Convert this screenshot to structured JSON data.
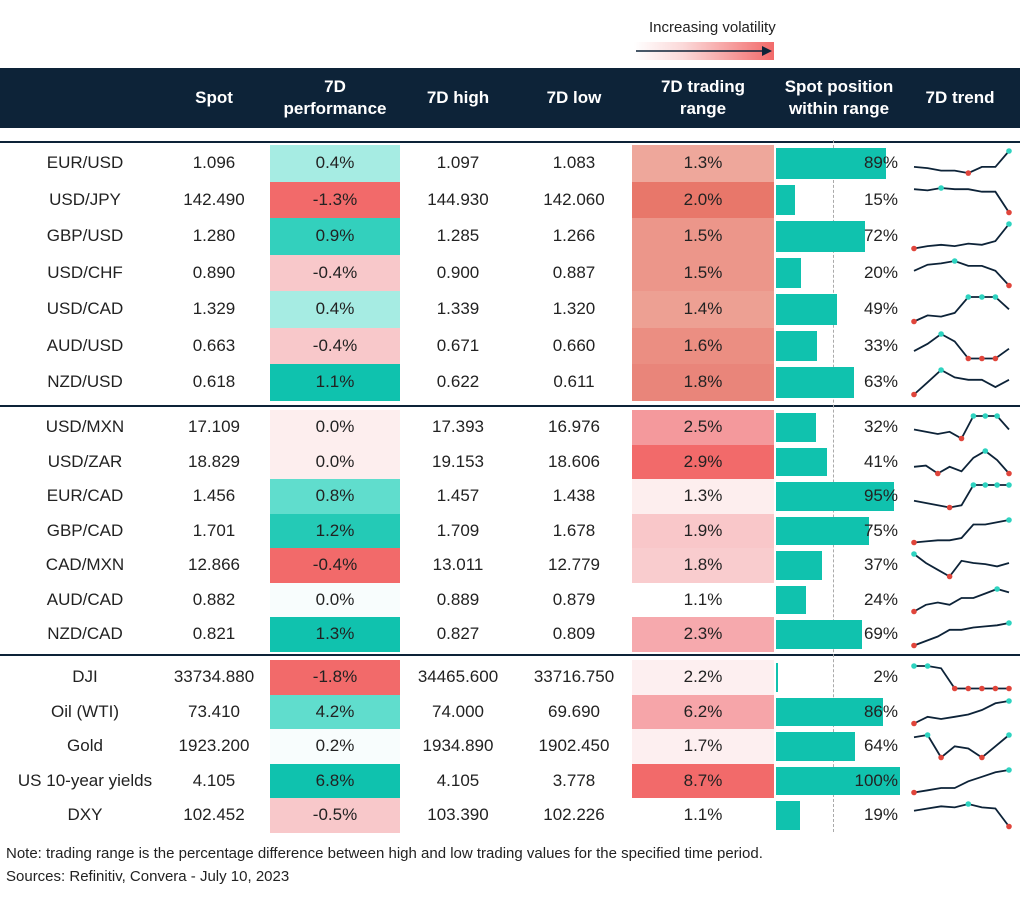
{
  "legend": {
    "label": "Increasing volatility"
  },
  "header": {
    "spot": "Spot",
    "perf_line1": "7D",
    "perf_line2": "performance",
    "high": "7D high",
    "low": "7D low",
    "range_line1": "7D trading",
    "range_line2": "range",
    "pos_line1": "Spot position",
    "pos_line2": "within range",
    "trend": "7D trend"
  },
  "groups": [
    {
      "rows": [
        {
          "name": "EUR/USD",
          "spot": "1.096",
          "perf": "0.4%",
          "high": "1.097",
          "low": "1.083",
          "range": "1.3%",
          "pos_label": "89%",
          "perf_color": "#a6ece3",
          "range_color": "#eea79b",
          "pos": 0.89,
          "trend": [
            0.35,
            0.3,
            0.2,
            0.2,
            0.1,
            0.35,
            0.35,
            1.0
          ]
        },
        {
          "name": "USD/JPY",
          "spot": "142.490",
          "perf": "-1.3%",
          "high": "144.930",
          "low": "142.060",
          "range": "2.0%",
          "pos_label": "15%",
          "perf_color": "#f26a6a",
          "range_color": "#e8776a",
          "pos": 0.15,
          "trend": [
            0.95,
            0.9,
            1.0,
            0.95,
            0.95,
            0.85,
            0.85,
            0.0
          ]
        },
        {
          "name": "GBP/USD",
          "spot": "1.280",
          "perf": "0.9%",
          "high": "1.285",
          "low": "1.266",
          "range": "1.5%",
          "pos_label": "72%",
          "perf_color": "#33d0bd",
          "range_color": "#ec968a",
          "pos": 0.72,
          "trend": [
            0.0,
            0.1,
            0.15,
            0.1,
            0.2,
            0.15,
            0.3,
            1.0
          ]
        },
        {
          "name": "USD/CHF",
          "spot": "0.890",
          "perf": "-0.4%",
          "high": "0.900",
          "low": "0.887",
          "range": "1.5%",
          "pos_label": "20%",
          "perf_color": "#f8c8ca",
          "range_color": "#ec968a",
          "pos": 0.2,
          "trend": [
            0.6,
            0.85,
            0.9,
            1.0,
            0.8,
            0.8,
            0.6,
            0.0
          ]
        },
        {
          "name": "USD/CAD",
          "spot": "1.329",
          "perf": "0.4%",
          "high": "1.339",
          "low": "1.320",
          "range": "1.4%",
          "pos_label": "49%",
          "perf_color": "#a6ece3",
          "range_color": "#eda093",
          "pos": 0.49,
          "trend": [
            0.0,
            0.25,
            0.2,
            0.35,
            1.0,
            1.0,
            1.0,
            0.5
          ]
        },
        {
          "name": "AUD/USD",
          "spot": "0.663",
          "perf": "-0.4%",
          "high": "0.671",
          "low": "0.660",
          "range": "1.6%",
          "pos_label": "33%",
          "perf_color": "#f8c8ca",
          "range_color": "#eb8e82",
          "pos": 0.33,
          "trend": [
            0.3,
            0.6,
            1.0,
            0.7,
            0.0,
            0.0,
            0.0,
            0.4
          ]
        },
        {
          "name": "NZD/USD",
          "spot": "0.618",
          "perf": "1.1%",
          "high": "0.622",
          "low": "0.611",
          "range": "1.8%",
          "pos_label": "63%",
          "perf_color": "#0fc2ae",
          "range_color": "#e9857a",
          "pos": 0.63,
          "trend": [
            0.0,
            0.5,
            1.0,
            0.7,
            0.6,
            0.6,
            0.3,
            0.6
          ]
        }
      ]
    },
    {
      "rows": [
        {
          "name": "USD/MXN",
          "spot": "17.109",
          "perf": "0.0%",
          "high": "17.393",
          "low": "16.976",
          "range": "2.5%",
          "pos_label": "32%",
          "perf_color": "#fdeeee",
          "range_color": "#f4999c",
          "pos": 0.32,
          "trend": [
            0.4,
            0.3,
            0.2,
            0.3,
            0.0,
            1.0,
            1.0,
            1.0,
            0.4
          ]
        },
        {
          "name": "USD/ZAR",
          "spot": "18.829",
          "perf": "0.0%",
          "high": "19.153",
          "low": "18.606",
          "range": "2.9%",
          "pos_label": "41%",
          "perf_color": "#fdeeee",
          "range_color": "#f26a6a",
          "pos": 0.41,
          "trend": [
            0.3,
            0.35,
            0.0,
            0.3,
            0.1,
            0.7,
            1.0,
            0.6,
            0.0
          ]
        },
        {
          "name": "EUR/CAD",
          "spot": "1.456",
          "perf": "0.8%",
          "high": "1.457",
          "low": "1.438",
          "range": "1.3%",
          "pos_label": "95%",
          "perf_color": "#60ddcd",
          "range_color": "#fdeeee",
          "pos": 0.95,
          "trend": [
            0.3,
            0.2,
            0.1,
            0.0,
            0.1,
            1.0,
            1.0,
            1.0,
            1.0
          ]
        },
        {
          "name": "GBP/CAD",
          "spot": "1.701",
          "perf": "1.2%",
          "high": "1.709",
          "low": "1.678",
          "range": "1.9%",
          "pos_label": "75%",
          "perf_color": "#24cab6",
          "range_color": "#f9c7c9",
          "pos": 0.75,
          "trend": [
            0.0,
            0.05,
            0.1,
            0.1,
            0.2,
            0.8,
            0.8,
            0.9,
            1.0
          ]
        },
        {
          "name": "CAD/MXN",
          "spot": "12.866",
          "perf": "-0.4%",
          "high": "13.011",
          "low": "12.779",
          "range": "1.8%",
          "pos_label": "37%",
          "perf_color": "#f26a6a",
          "range_color": "#f9ccce",
          "pos": 0.37,
          "trend": [
            1.0,
            0.6,
            0.3,
            0.0,
            0.7,
            0.6,
            0.55,
            0.45,
            0.6
          ]
        },
        {
          "name": "AUD/CAD",
          "spot": "0.882",
          "perf": "0.0%",
          "high": "0.889",
          "low": "0.879",
          "range": "1.1%",
          "pos_label": "24%",
          "perf_color": "#f8fdfd",
          "range_color": "#ffffff",
          "pos": 0.24,
          "trend": [
            0.0,
            0.3,
            0.4,
            0.3,
            0.6,
            0.6,
            0.8,
            1.0,
            0.85
          ]
        },
        {
          "name": "NZD/CAD",
          "spot": "0.821",
          "perf": "1.3%",
          "high": "0.827",
          "low": "0.809",
          "range": "2.3%",
          "pos_label": "69%",
          "perf_color": "#10c2ae",
          "range_color": "#f6a9ad",
          "pos": 0.69,
          "trend": [
            0.0,
            0.2,
            0.4,
            0.7,
            0.7,
            0.8,
            0.85,
            0.9,
            1.0
          ]
        }
      ]
    },
    {
      "rows": [
        {
          "name": "DJI",
          "spot": "33734.880",
          "perf": "-1.8%",
          "high": "34465.600",
          "low": "33716.750",
          "range": "2.2%",
          "pos_label": "2%",
          "perf_color": "#f26a6a",
          "range_color": "#fdeff0",
          "pos": 0.02,
          "trend": [
            1.0,
            1.0,
            0.9,
            0.0,
            0.0,
            0.0,
            0.0,
            0.0
          ]
        },
        {
          "name": "Oil (WTI)",
          "spot": "73.410",
          "perf": "4.2%",
          "high": "74.000",
          "low": "69.690",
          "range": "6.2%",
          "pos_label": "86%",
          "perf_color": "#60ddcd",
          "range_color": "#f6a5a9",
          "pos": 0.86,
          "trend": [
            0.0,
            0.3,
            0.2,
            0.3,
            0.4,
            0.6,
            0.9,
            1.0
          ]
        },
        {
          "name": "Gold",
          "spot": "1923.200",
          "perf": "0.2%",
          "high": "1934.890",
          "low": "1902.450",
          "range": "1.7%",
          "pos_label": "64%",
          "perf_color": "#f8fdfd",
          "range_color": "#fdeff0",
          "pos": 0.64,
          "trend": [
            0.9,
            1.0,
            0.0,
            0.5,
            0.4,
            0.0,
            0.5,
            1.0
          ]
        },
        {
          "name": "US 10-year yields",
          "spot": "4.105",
          "perf": "6.8%",
          "high": "4.105",
          "low": "3.778",
          "range": "8.7%",
          "pos_label": "100%",
          "perf_color": "#0fc2ae",
          "range_color": "#f26a6a",
          "pos": 1.0,
          "trend": [
            0.0,
            0.1,
            0.2,
            0.2,
            0.5,
            0.7,
            0.9,
            1.0
          ]
        },
        {
          "name": "DXY",
          "spot": "102.452",
          "perf": "-0.5%",
          "high": "103.390",
          "low": "102.226",
          "range": "1.1%",
          "pos_label": "19%",
          "perf_color": "#f8c8ca",
          "range_color": "#ffffff",
          "pos": 0.19,
          "trend": [
            0.7,
            0.8,
            0.9,
            0.85,
            1.0,
            0.85,
            0.8,
            0.0
          ]
        }
      ]
    }
  ],
  "footer": {
    "note": "Note: trading range is the percentage difference between high and low trading values for the specified time period.",
    "sources": "Sources: Refinitiv, Convera - July 10, 2023"
  },
  "colors": {
    "header_bg": "#0d2338",
    "teal": "#10c2ae",
    "red": "#f26a6a",
    "trend_max_marker": "#2ed3c0",
    "trend_min_marker": "#e0453b"
  }
}
